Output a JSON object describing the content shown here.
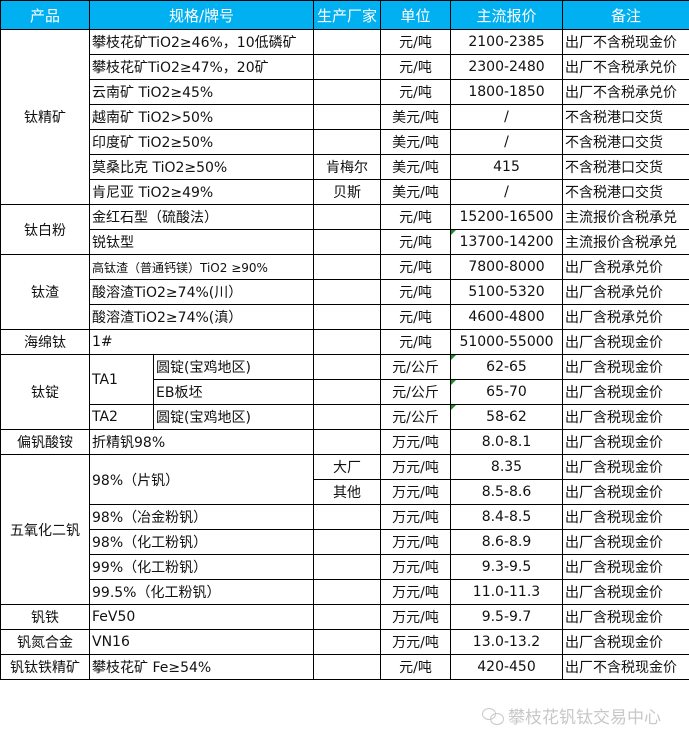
{
  "colors": {
    "header_bg": "#00b0f0",
    "header_text": "#ffffff",
    "comment_marker": "#1e8f2a"
  },
  "header": [
    "产品",
    "规格/牌号",
    "生产厂家",
    "单位",
    "主流报价",
    "备注"
  ],
  "groups": [
    {
      "product": "钛精矿",
      "rows": [
        {
          "spec": "攀枝花矿TiO2≥46%，10低磷矿",
          "maker": "",
          "unit": "元/吨",
          "price": "2100-2385",
          "note": "出厂不含税现金价"
        },
        {
          "spec": "攀枝花矿TiO2≥47%，20矿",
          "maker": "",
          "unit": "元/吨",
          "price": "2300-2480",
          "note": "出厂不含税承兑价"
        },
        {
          "spec": "云南矿 TiO2≥45%",
          "maker": "",
          "unit": "元/吨",
          "price": "1800-1850",
          "note": "出厂不含税承兑价"
        },
        {
          "spec": "越南矿 TiO2>50%",
          "maker": "",
          "unit": "美元/吨",
          "price": "/",
          "note": "不含税港口交货"
        },
        {
          "spec": "印度矿 TiO2≥50%",
          "maker": "",
          "unit": "美元/吨",
          "price": "/",
          "note": "不含税港口交货"
        },
        {
          "spec": "莫桑比克 TiO2≥50%",
          "maker": "肯梅尔",
          "unit": "美元/吨",
          "price": "415",
          "note": "不含税港口交货"
        },
        {
          "spec": "肯尼亚 TiO2≥49%",
          "maker": "贝斯",
          "unit": "美元/吨",
          "price": "/",
          "note": "不含税港口交货"
        }
      ]
    },
    {
      "product": "钛白粉",
      "rows": [
        {
          "spec": "金红石型（硫酸法）",
          "maker": "",
          "unit": "元/吨",
          "price": "15200-16500",
          "note": "主流报价含税承兑"
        },
        {
          "spec": "锐钛型",
          "maker": "",
          "unit": "元/吨",
          "price": "13700-14200",
          "note": "主流报价含税承兑",
          "comment_marker": true
        }
      ]
    },
    {
      "product": "钛渣",
      "rows": [
        {
          "spec": "高钛渣（普通钙镁）TiO2 ≥90%",
          "maker": "",
          "unit": "元/吨",
          "price": "7800-8000",
          "note": "出厂含税承兑价",
          "small": true
        },
        {
          "spec": "酸溶渣TiO2≥74%(川）",
          "maker": "",
          "unit": "元/吨",
          "price": "5100-5320",
          "note": "出厂含税承兑价"
        },
        {
          "spec": "酸溶渣TiO2≥74%(滇）",
          "maker": "",
          "unit": "元/吨",
          "price": "4600-4800",
          "note": "出厂含税承兑价"
        }
      ]
    },
    {
      "product": "海绵钛",
      "rows": [
        {
          "spec": "1#",
          "maker": "",
          "unit": "元/吨",
          "price": "51000-55000",
          "note": "出厂含税现金价"
        }
      ]
    },
    {
      "product": "钛锭",
      "rows": [
        {
          "grade": "TA1",
          "items": [
            {
              "sub": "圆锭(宝鸡地区)",
              "maker": "",
              "unit": "元/公斤",
              "price": "62-65",
              "note": "出厂含税现金价",
              "comment_marker": true
            },
            {
              "sub": "EB板坯",
              "maker": "",
              "unit": "元/公斤",
              "price": "65-70",
              "note": "出厂含税现金价",
              "comment_marker": true
            }
          ]
        },
        {
          "grade": "TA2",
          "items": [
            {
              "sub": "圆锭(宝鸡地区)",
              "maker": "",
              "unit": "元/公斤",
              "price": "58-62",
              "note": "出厂含税现金价",
              "comment_marker": true
            }
          ]
        }
      ]
    },
    {
      "product": "偏钒酸铵",
      "rows": [
        {
          "spec": "折精钒98%",
          "maker": "",
          "unit": "万元/吨",
          "price": "8.0-8.1",
          "note": "出厂含税现金价"
        }
      ]
    },
    {
      "product": "五氧化二钒",
      "rows": [
        {
          "spec": "98%（片钒）",
          "variants": [
            {
              "maker": "大厂",
              "unit": "万元/吨",
              "price": "8.35",
              "note": "出厂含税现金价"
            },
            {
              "maker": "其他",
              "unit": "万元/吨",
              "price": "8.5-8.6",
              "note": "出厂含税现金价"
            }
          ]
        },
        {
          "spec": "98%（冶金粉钒）",
          "maker": "",
          "unit": "万元/吨",
          "price": "8.4-8.5",
          "note": "出厂含税现金价"
        },
        {
          "spec": "98%（化工粉钒）",
          "maker": "",
          "unit": "万元/吨",
          "price": "8.6-8.9",
          "note": "出厂含税现金价"
        },
        {
          "spec": "99%（化工粉钒）",
          "maker": "",
          "unit": "万元/吨",
          "price": "9.3-9.5",
          "note": "出厂含税现金价"
        },
        {
          "spec": "99.5%（化工粉钒）",
          "maker": "",
          "unit": "万元/吨",
          "price": "11.0-11.3",
          "note": "出厂含税现金价"
        }
      ]
    },
    {
      "product": "钒铁",
      "rows": [
        {
          "spec": "FeV50",
          "maker": "",
          "unit": "万元/吨",
          "price": "9.5-9.7",
          "note": "出厂含税现金价"
        }
      ]
    },
    {
      "product": "钒氮合金",
      "rows": [
        {
          "spec": "VN16",
          "maker": "",
          "unit": "万元/吨",
          "price": "13.0-13.2",
          "note": "出厂含税现金价"
        }
      ]
    },
    {
      "product": "钒钛铁精矿",
      "rows": [
        {
          "spec": "攀枝花矿 Fe≥54%",
          "maker": "",
          "unit": "元/吨",
          "price": "420-450",
          "note": "出厂不含税现金价"
        }
      ]
    }
  ],
  "watermark": {
    "icon": "wechat-icon",
    "text": "攀枝花钒钛交易中心"
  }
}
